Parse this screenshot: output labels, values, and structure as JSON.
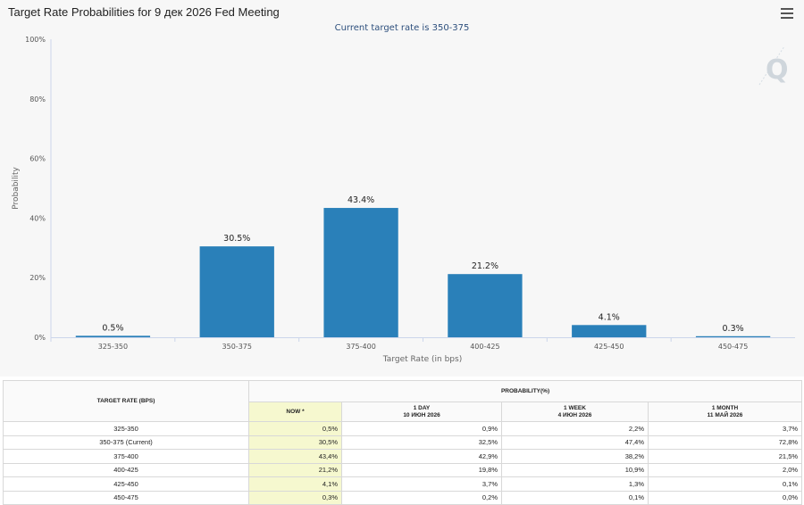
{
  "chart_data": {
    "type": "bar",
    "title": "Target Rate Probabilities for 9 дек 2026 Fed Meeting",
    "subtitle": "Current target rate is 350-375",
    "xlabel": "Target Rate (in bps)",
    "ylabel": "Probability",
    "categories": [
      "325-350",
      "350-375",
      "375-400",
      "400-425",
      "425-450",
      "450-475"
    ],
    "values": [
      0.5,
      30.5,
      43.4,
      21.2,
      4.1,
      0.3
    ],
    "data_labels": [
      "0.5%",
      "30.5%",
      "43.4%",
      "21.2%",
      "4.1%",
      "0.3%"
    ],
    "ylim": [
      0,
      100
    ],
    "yticks": [
      "0%",
      "20%",
      "40%",
      "60%",
      "80%",
      "100%"
    ],
    "grid": false,
    "bar_color": "#2a80b9"
  },
  "watermark_text": "Q",
  "menu_icon": "hamburger-icon",
  "table": {
    "col_rate_header": "TARGET RATE (BPS)",
    "col_prob_header": "PROBABILITY(%)",
    "now_header": "NOW *",
    "cols": [
      {
        "line1": "1 DAY",
        "line2": "10 ИЮН 2026"
      },
      {
        "line1": "1 WEEK",
        "line2": "4 ИЮН 2026"
      },
      {
        "line1": "1 MONTH",
        "line2": "11 МАЙ 2026"
      }
    ],
    "rows": [
      {
        "rate": "325-350",
        "now": "0,5%",
        "d1": "0,9%",
        "w1": "2,2%",
        "m1": "3,7%"
      },
      {
        "rate": "350-375 (Current)",
        "now": "30,5%",
        "d1": "32,5%",
        "w1": "47,4%",
        "m1": "72,8%"
      },
      {
        "rate": "375-400",
        "now": "43,4%",
        "d1": "42,9%",
        "w1": "38,2%",
        "m1": "21,5%"
      },
      {
        "rate": "400-425",
        "now": "21,2%",
        "d1": "19,8%",
        "w1": "10,9%",
        "m1": "2,0%"
      },
      {
        "rate": "425-450",
        "now": "4,1%",
        "d1": "3,7%",
        "w1": "1,3%",
        "m1": "0,1%"
      },
      {
        "rate": "450-475",
        "now": "0,3%",
        "d1": "0,2%",
        "w1": "0,1%",
        "m1": "0,0%"
      }
    ]
  }
}
